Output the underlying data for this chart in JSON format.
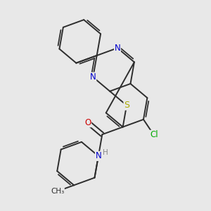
{
  "background_color": "#e8e8e8",
  "bond_color": "#2d2d2d",
  "atom_colors": {
    "N": "#0000cc",
    "O": "#cc0000",
    "S": "#aaaa00",
    "Cl": "#00aa00",
    "H": "#888888",
    "C": "#2d2d2d"
  },
  "figsize": [
    3.0,
    3.0
  ],
  "dpi": 100
}
